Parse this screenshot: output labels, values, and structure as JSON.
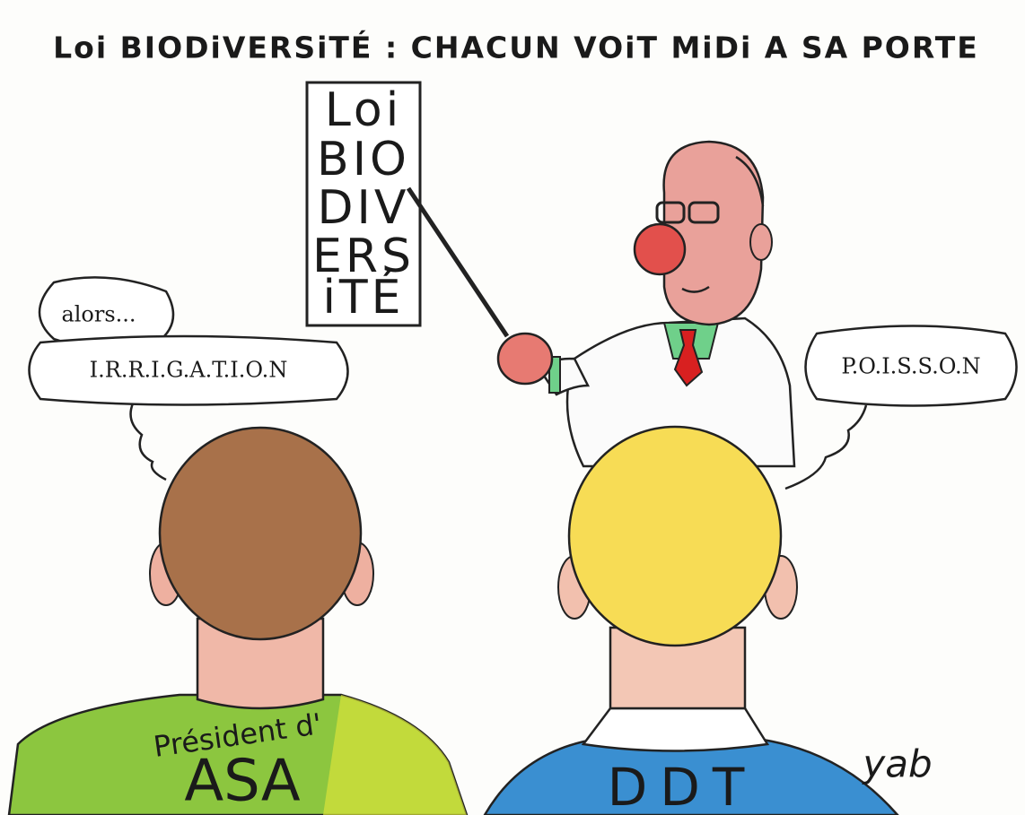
{
  "title": "Loi BIODiVERSiTÉ : CHACUN VOiT MiDi A SA PORTE",
  "eye_chart": {
    "lines": [
      "Loi",
      "BIO",
      "DIV",
      "ERS",
      "iTÉ"
    ]
  },
  "left_bubble": {
    "small": "alors...",
    "large": "I.R.R.I.G.A.T.I.O.N"
  },
  "right_bubble": {
    "text": "P.O.I.S.S.O.N"
  },
  "left_shirt": {
    "line1": "Président d'",
    "line2": "ASA"
  },
  "right_shirt": {
    "text": "DDT"
  },
  "signature": "yab"
}
